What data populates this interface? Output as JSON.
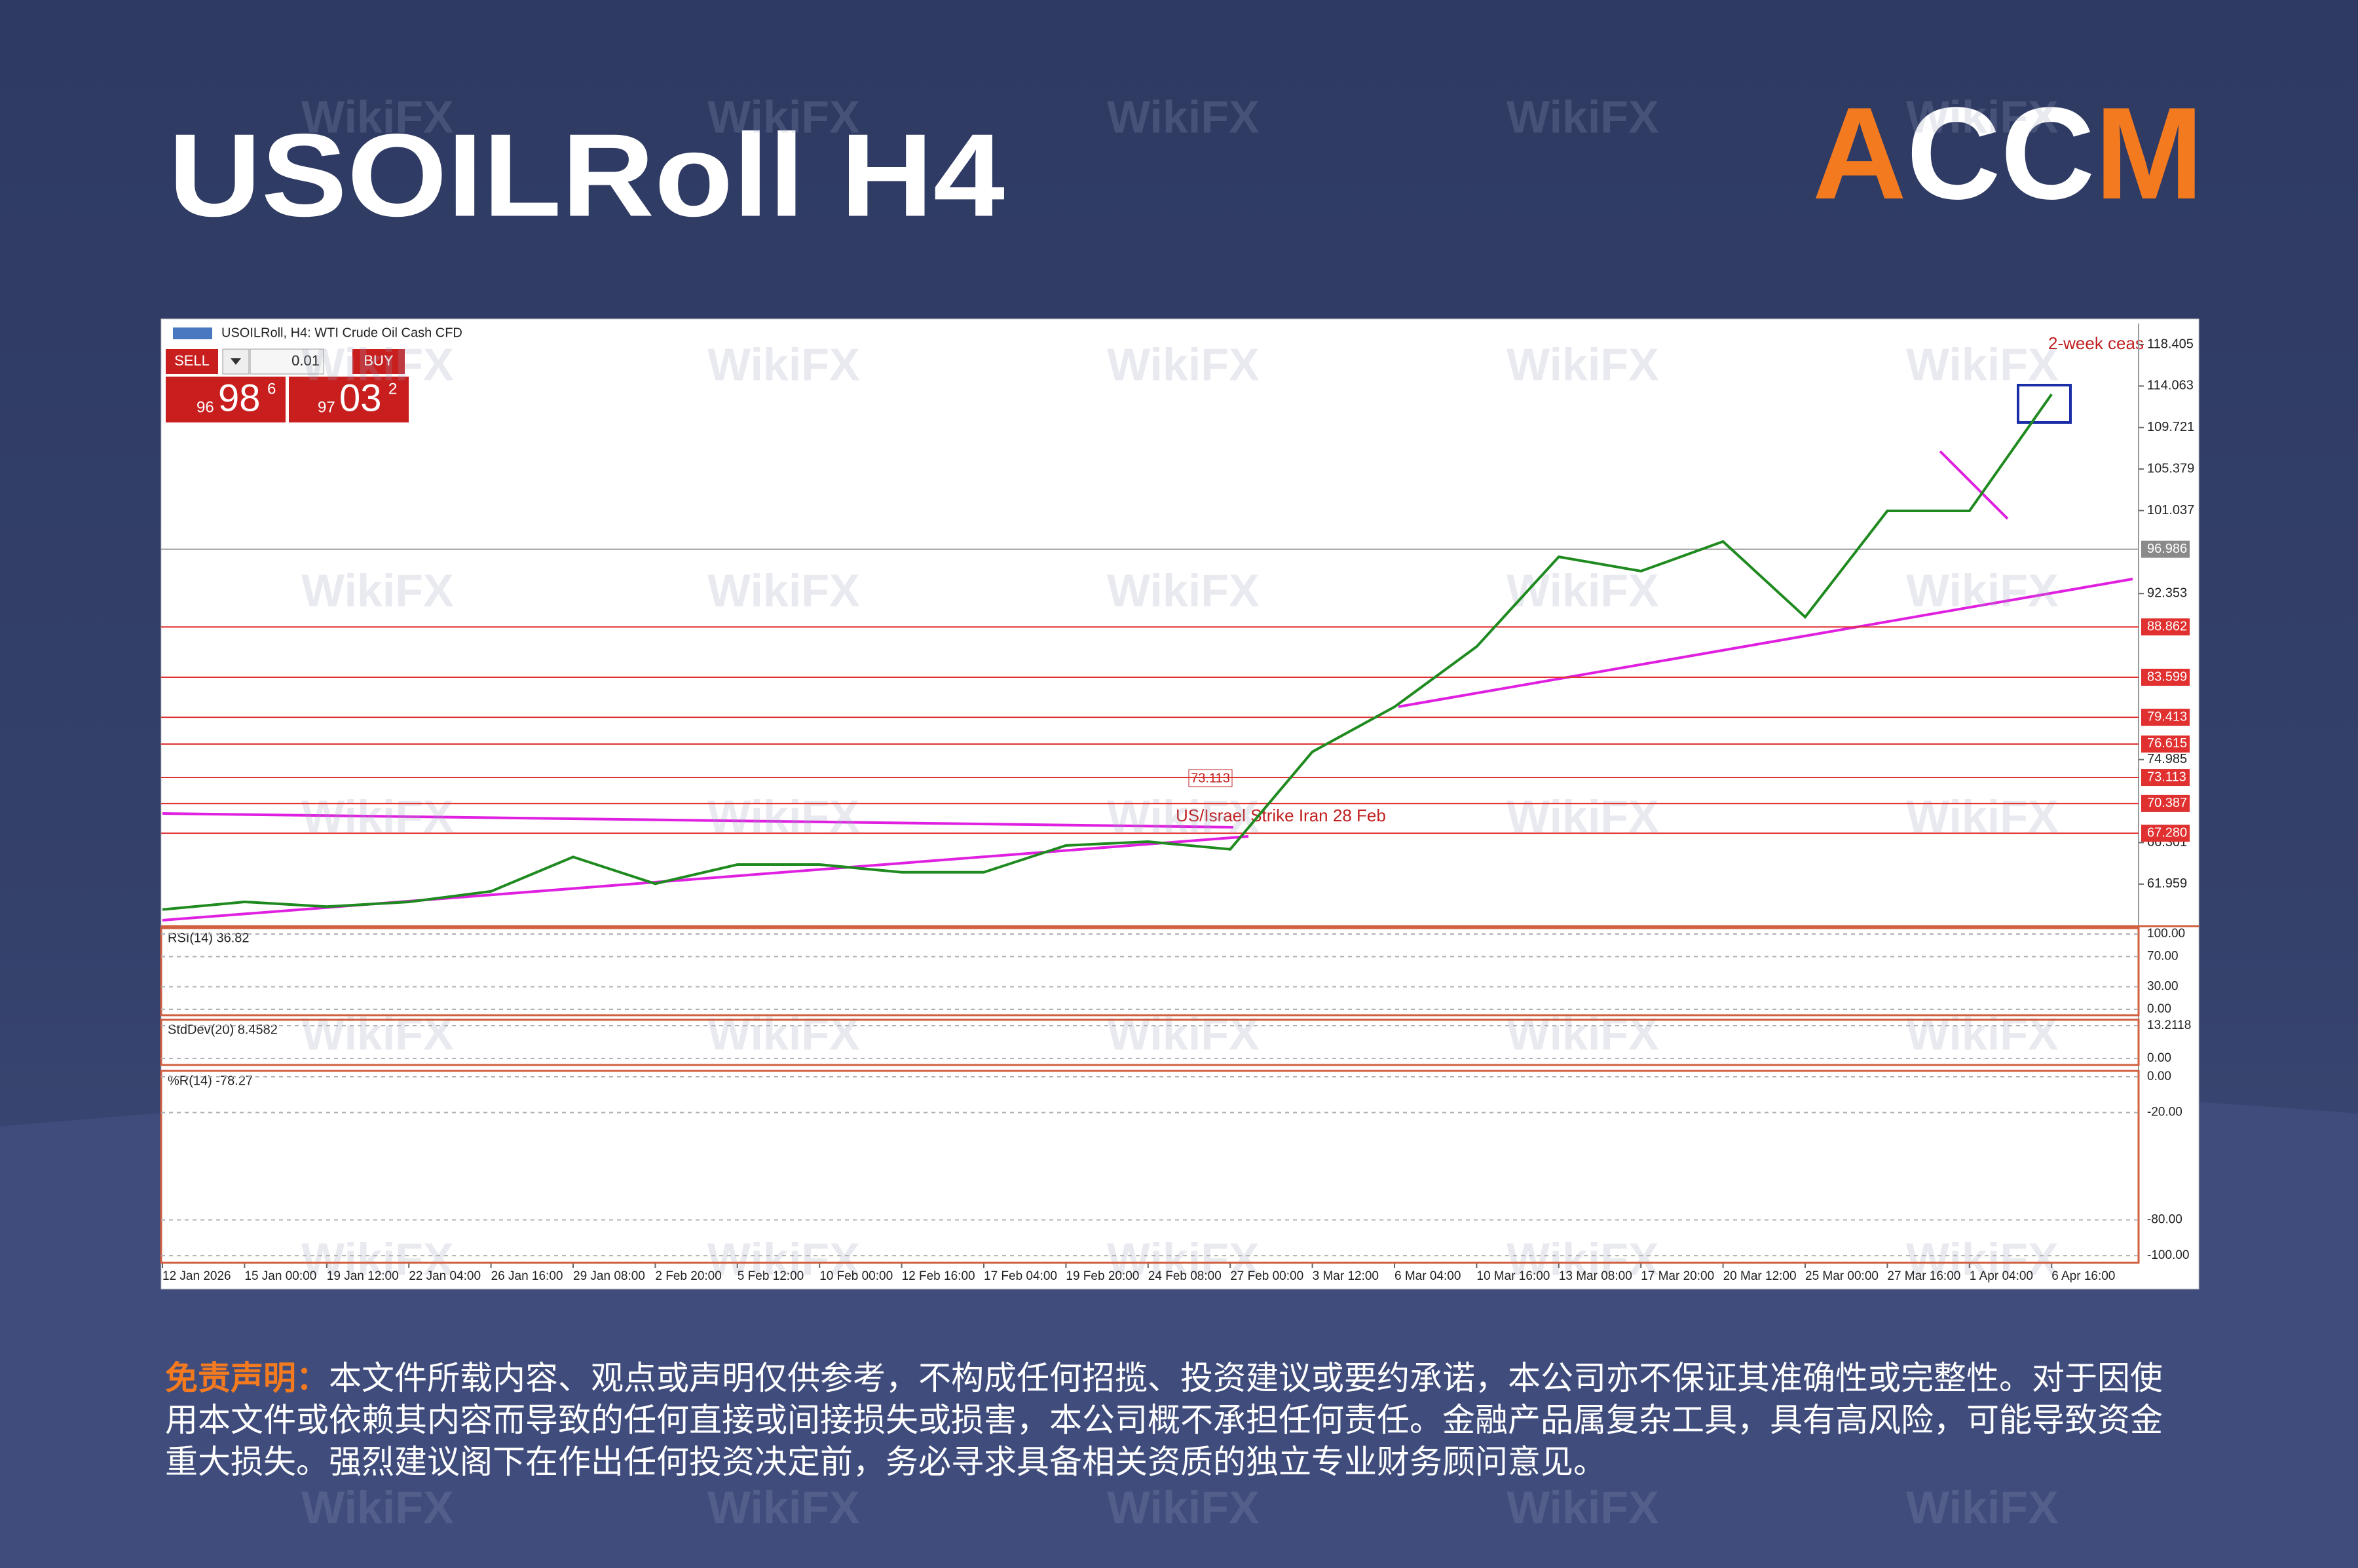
{
  "header": {
    "title": "USOILRoll H4",
    "logo": {
      "letters": [
        "A",
        "C",
        "C",
        "M"
      ]
    },
    "watermark": "WikiFX"
  },
  "trade_panel": {
    "sell": "SELL",
    "buy": "BUY",
    "lot": "0.01",
    "sell_price": {
      "prefix": "96",
      "main": "98",
      "sup": "6"
    },
    "buy_price": {
      "prefix": "97",
      "main": "03",
      "sup": "2"
    }
  },
  "chart_data": {
    "type": "line",
    "subtitle": "USOILRoll, H4: WTI Crude Oil Cash CFD",
    "color": "#1f8a1f",
    "categories": [
      "12 Jan 2026",
      "15 Jan 00:00",
      "19 Jan 12:00",
      "22 Jan 04:00",
      "26 Jan 16:00",
      "29 Jan 08:00",
      "2 Feb 20:00",
      "5 Feb 12:00",
      "10 Feb 00:00",
      "12 Feb 16:00",
      "17 Feb 04:00",
      "19 Feb 20:00",
      "24 Feb 08:00",
      "27 Feb 00:00",
      "3 Mar 12:00",
      "6 Mar 04:00",
      "10 Mar 16:00",
      "13 Mar 08:00",
      "17 Mar 20:00",
      "20 Mar 12:00",
      "25 Mar 00:00",
      "27 Mar 16:00",
      "1 Apr 04:00",
      "6 Apr 16:00"
    ],
    "values": [
      59.3,
      60.1,
      59.6,
      60.1,
      61.2,
      64.8,
      62.0,
      64.0,
      64.0,
      63.2,
      63.2,
      66.0,
      66.4,
      65.6,
      75.8,
      80.5,
      86.8,
      96.2,
      94.7,
      97.8,
      89.9,
      101.0,
      101.0,
      113.2
    ],
    "ylim": [
      57.7,
      120.6
    ],
    "yticks": [
      118.405,
      114.063,
      109.721,
      105.379,
      101.037,
      92.353,
      74.985,
      66.301,
      61.959
    ],
    "current_price": 96.986,
    "levels": [
      88.862,
      83.599,
      79.413,
      76.615,
      73.113,
      70.387,
      {
        "value": 67.28,
        "label": "67.280"
      }
    ],
    "level_color": "#e03030",
    "annotations": [
      "US/Israel Strike Iran 28 Feb",
      "2-week ceas",
      "73.113"
    ]
  },
  "indicators": [
    {
      "label": "RSI(14) 36.82",
      "color": "#3a7bd5",
      "ylim": [
        -7.8,
        107.8
      ],
      "yticks": [
        {
          "value": 100,
          "label": "100.00"
        },
        {
          "value": 70,
          "label": "70.00"
        },
        {
          "value": 30,
          "label": "30.00"
        },
        {
          "value": 0,
          "label": "0.00"
        }
      ]
    },
    {
      "label": "StdDev(20) 8.4582",
      "color": "#2e8b57",
      "ylim": [
        -2.64,
        15.59
      ],
      "yticks": [
        13.2118,
        {
          "value": 0,
          "label": "0.00"
        }
      ]
    },
    {
      "label": "%R(14) -78.27",
      "color": "#20c0c8",
      "ylim": [
        -104,
        3.3
      ],
      "yticks": [
        {
          "value": 0,
          "label": "0.00"
        },
        {
          "value": -20,
          "label": "-20.00"
        },
        {
          "value": -80,
          "label": "-80.00"
        },
        {
          "value": -100,
          "label": "-100.00"
        }
      ]
    }
  ],
  "disclaimer": {
    "label": "免责声明：",
    "text": "本文件所载内容、观点或声明仅供参考，不构成任何招揽、投资建议或要约承诺，本公司亦不保证其准确性或完整性。对于因使用本文件或依赖其内容而导致的任何直接或间接损失或损害，本公司概不承担任何责任。金融产品属复杂工具，具有高风险，可能导致资金重大损失。强烈建议阁下在作出任何投资决定前，务必寻求具备相关资质的独立专业财务顾问意见。"
  }
}
